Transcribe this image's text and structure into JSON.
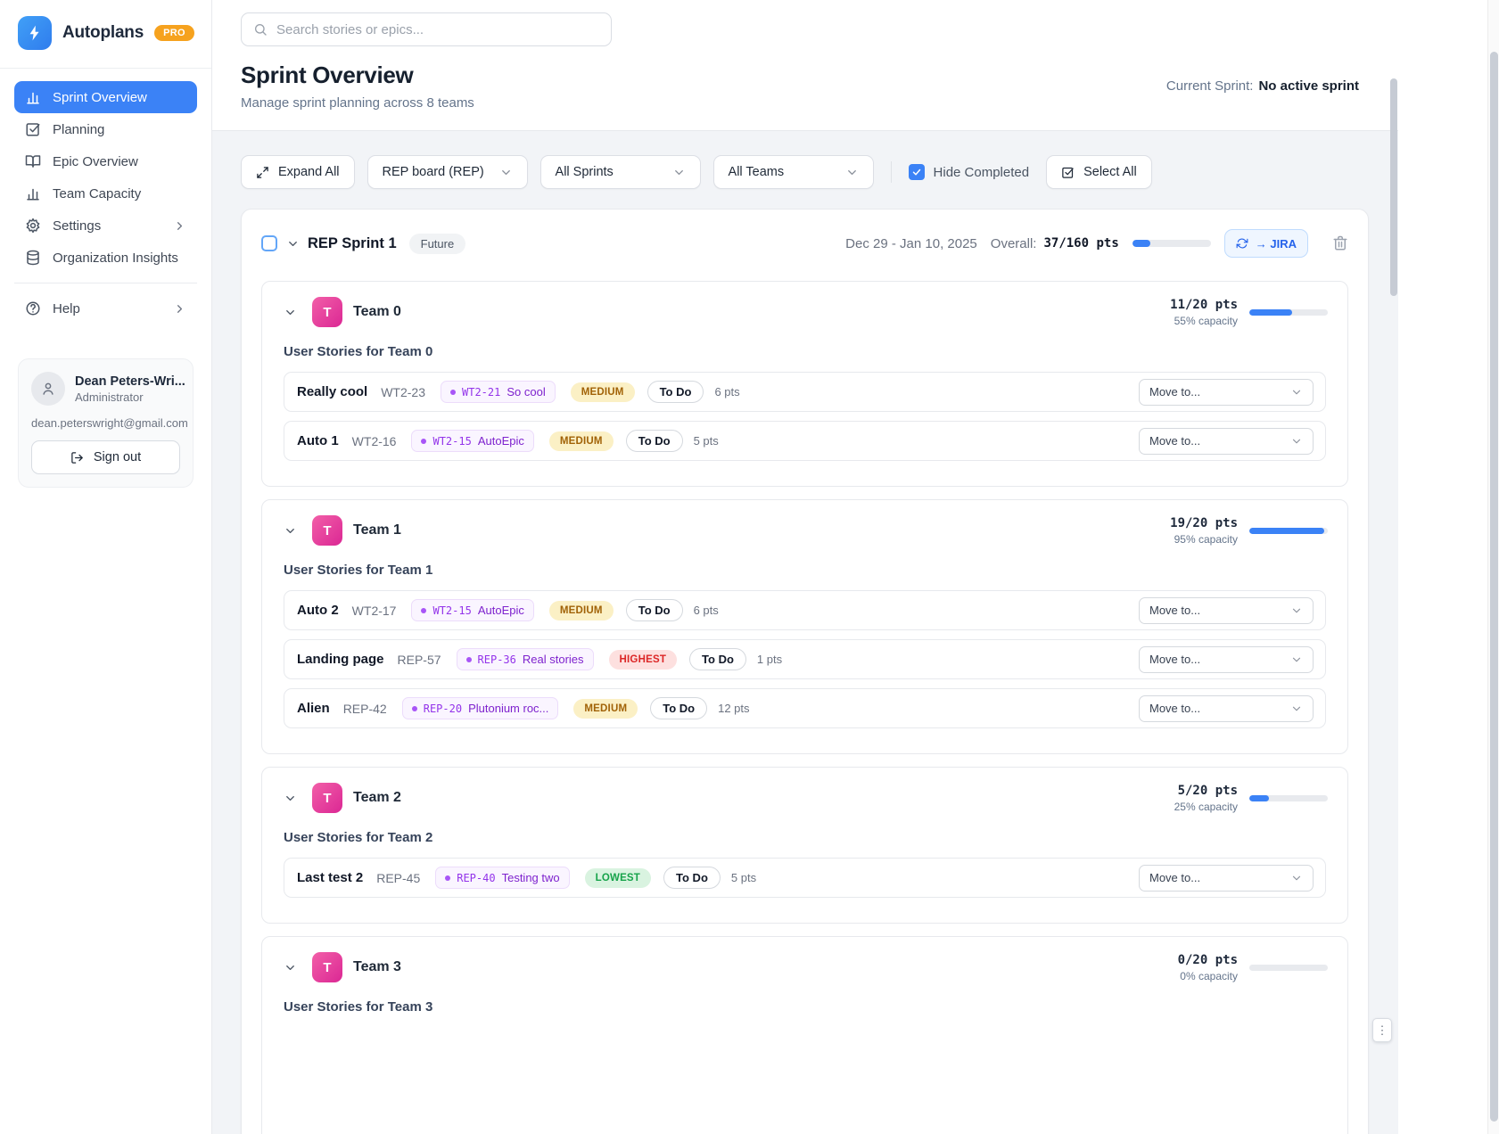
{
  "app": {
    "name": "Autoplans",
    "badge": "PRO"
  },
  "colors": {
    "accent": "#3b82f6",
    "pro_badge": "#f6a21e",
    "team_avatar": "#e0369e",
    "epic_text": "#7e22ce",
    "priority_medium_bg": "#fbf0c5",
    "priority_medium_text": "#a16207",
    "priority_highest_bg": "#fde0df",
    "priority_highest_text": "#dc2626",
    "priority_lowest_bg": "#d9f3e0",
    "priority_lowest_text": "#16a34a"
  },
  "sidebar": {
    "nav": [
      {
        "label": "Sprint Overview",
        "icon": "bar-chart-icon",
        "active": true
      },
      {
        "label": "Planning",
        "icon": "check-square-icon"
      },
      {
        "label": "Epic Overview",
        "icon": "book-open-icon"
      },
      {
        "label": "Team Capacity",
        "icon": "bar-chart-icon"
      },
      {
        "label": "Settings",
        "icon": "gear-icon",
        "chevron": true
      },
      {
        "label": "Organization Insights",
        "icon": "database-icon"
      },
      {
        "label": "Help",
        "icon": "help-circle-icon",
        "chevron": true
      }
    ],
    "user": {
      "name": "Dean Peters-Wri...",
      "role": "Administrator",
      "email": "dean.peterswright@gmail.com",
      "signout_label": "Sign out"
    }
  },
  "header": {
    "search_placeholder": "Search stories or epics...",
    "title": "Sprint Overview",
    "subtitle": "Manage sprint planning across 8 teams",
    "current_sprint_label": "Current Sprint:",
    "current_sprint_value": "No active sprint"
  },
  "toolbar": {
    "expand_all": "Expand All",
    "board": "REP board (REP)",
    "sprints": "All Sprints",
    "teams": "All Teams",
    "hide_completed": "Hide Completed",
    "hide_completed_checked": true,
    "select_all": "Select All"
  },
  "sprint": {
    "name": "REP Sprint 1",
    "status": "Future",
    "dates": "Dec 29 - Jan 10, 2025",
    "overall_label": "Overall:",
    "overall_value": "37/160 pts",
    "overall_pct": 23,
    "jira_button": "→ JIRA",
    "move_label": "Move to...",
    "teams": [
      {
        "name": "Team 0",
        "initial": "T",
        "points": "11/20 pts",
        "capacity": "55% capacity",
        "pct": 55,
        "section_title": "User Stories for Team 0",
        "stories": [
          {
            "title": "Really cool",
            "key": "WT2-23",
            "epic_key": "WT2-21",
            "epic_name": "So cool",
            "priority": "MEDIUM",
            "priority_type": "medium",
            "status": "To Do",
            "points": "6 pts"
          },
          {
            "title": "Auto 1",
            "key": "WT2-16",
            "epic_key": "WT2-15",
            "epic_name": "AutoEpic",
            "priority": "MEDIUM",
            "priority_type": "medium",
            "status": "To Do",
            "points": "5 pts"
          }
        ]
      },
      {
        "name": "Team 1",
        "initial": "T",
        "points": "19/20 pts",
        "capacity": "95% capacity",
        "pct": 95,
        "section_title": "User Stories for Team 1",
        "stories": [
          {
            "title": "Auto 2",
            "key": "WT2-17",
            "epic_key": "WT2-15",
            "epic_name": "AutoEpic",
            "priority": "MEDIUM",
            "priority_type": "medium",
            "status": "To Do",
            "points": "6 pts"
          },
          {
            "title": "Landing page",
            "key": "REP-57",
            "epic_key": "REP-36",
            "epic_name": "Real stories",
            "priority": "HIGHEST",
            "priority_type": "highest",
            "status": "To Do",
            "points": "1 pts"
          },
          {
            "title": "Alien",
            "key": "REP-42",
            "epic_key": "REP-20",
            "epic_name": "Plutonium roc...",
            "priority": "MEDIUM",
            "priority_type": "medium",
            "status": "To Do",
            "points": "12 pts"
          }
        ]
      },
      {
        "name": "Team 2",
        "initial": "T",
        "points": "5/20 pts",
        "capacity": "25% capacity",
        "pct": 25,
        "section_title": "User Stories for Team 2",
        "stories": [
          {
            "title": "Last test 2",
            "key": "REP-45",
            "epic_key": "REP-40",
            "epic_name": "Testing two",
            "priority": "LOWEST",
            "priority_type": "lowest",
            "status": "To Do",
            "points": "5 pts"
          }
        ]
      },
      {
        "name": "Team 3",
        "initial": "T",
        "points": "0/20 pts",
        "capacity": "0% capacity",
        "pct": 0,
        "section_title": "User Stories for Team 3",
        "stories": []
      }
    ]
  }
}
